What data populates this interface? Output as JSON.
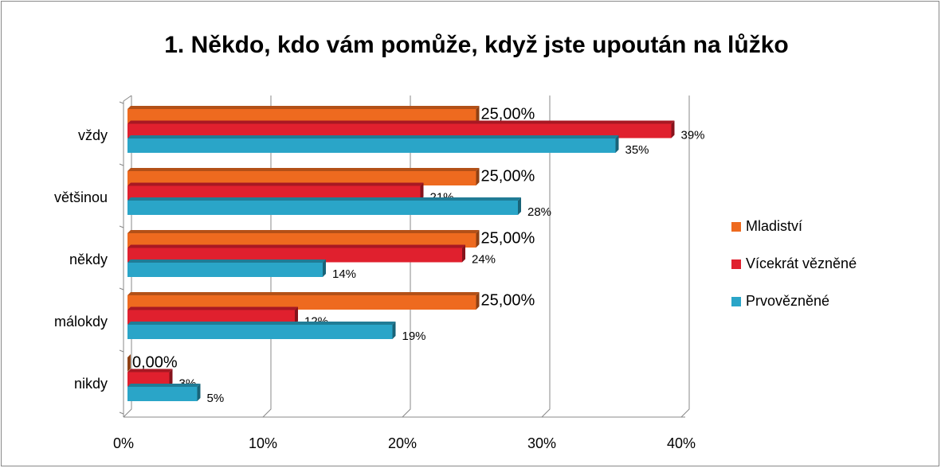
{
  "chart_data": {
    "type": "bar",
    "orientation": "horizontal",
    "title": "1. Někdo, kdo vám pomůže, když jste upoután na lůžko",
    "categories": [
      "vždy",
      "většinou",
      "někdy",
      "málokdy",
      "nikdy"
    ],
    "series": [
      {
        "name": "Mladiství",
        "color": "#ee6a1f",
        "values": [
          25,
          25,
          25,
          25,
          0
        ],
        "value_labels": [
          "25,00%",
          "25,00%",
          "25,00%",
          "25,00%",
          "0,00%"
        ]
      },
      {
        "name": "Vícekrát vězněné",
        "color": "#e0202e",
        "values": [
          39,
          21,
          24,
          12,
          3
        ],
        "value_labels": [
          "39%",
          "21%",
          "24%",
          "12%",
          "3%"
        ]
      },
      {
        "name": "Prvovězněné",
        "color": "#2aa5c8",
        "values": [
          35,
          28,
          14,
          19,
          5
        ],
        "value_labels": [
          "35%",
          "28%",
          "14%",
          "19%",
          "5%"
        ]
      }
    ],
    "xlim": [
      0,
      40
    ],
    "xticks": [
      {
        "value": 0,
        "label": "0%"
      },
      {
        "value": 10,
        "label": "10%"
      },
      {
        "value": 20,
        "label": "20%"
      },
      {
        "value": 30,
        "label": "30%"
      },
      {
        "value": 40,
        "label": "40%"
      }
    ],
    "grid": true,
    "legend": "right"
  }
}
